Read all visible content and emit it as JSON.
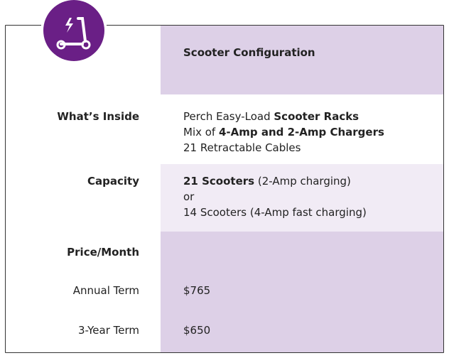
{
  "table": {
    "header": [
      "Scooter Configuration"
    ],
    "rows": [
      {
        "label": "What’s Inside",
        "bold": true,
        "lines": [
          [
            {
              "text": "Perch Easy-Load ",
              "bold": false
            },
            {
              "text": "Scooter Racks",
              "bold": true
            }
          ],
          [
            {
              "text": "Mix of ",
              "bold": false
            },
            {
              "text": "4-Amp and 2-Amp Chargers",
              "bold": true
            }
          ],
          [
            {
              "text": "21 Retractable Cables",
              "bold": false
            }
          ]
        ]
      },
      {
        "label": "Capacity",
        "bold": true,
        "lines": [
          [
            {
              "text": "21 Scooters",
              "bold": true
            },
            {
              "text": " (2-Amp charging)",
              "bold": false
            }
          ],
          [
            {
              "text": "or",
              "bold": false
            }
          ],
          [
            {
              "text": "14 Scooters (4-Amp fast charging)",
              "bold": false
            }
          ]
        ]
      },
      {
        "label": "Price/Month",
        "bold": true,
        "lines": []
      },
      {
        "label": "Annual Term",
        "bold": false,
        "lines": [
          [
            {
              "text": "$765",
              "bold": false
            }
          ]
        ]
      },
      {
        "label": "3-Year Term",
        "bold": false,
        "lines": [
          [
            {
              "text": "$650",
              "bold": false
            }
          ]
        ]
      }
    ]
  }
}
